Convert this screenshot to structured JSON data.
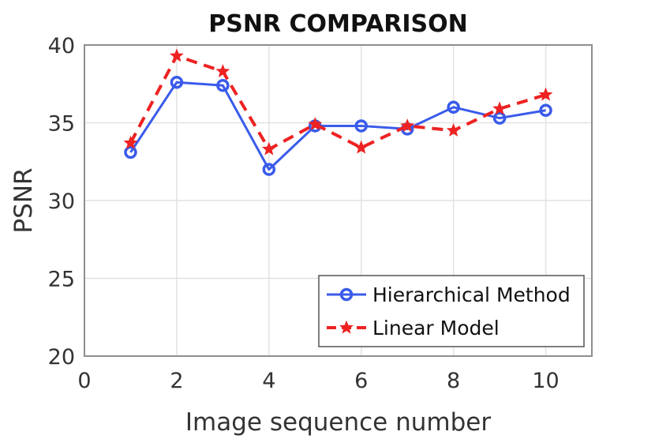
{
  "chart_data": {
    "type": "line",
    "title": "PSNR COMPARISON",
    "xlabel": "Image sequence number",
    "ylabel": "PSNR",
    "xlim": [
      0,
      11
    ],
    "ylim": [
      20,
      40
    ],
    "xticks": [
      0,
      2,
      4,
      6,
      8,
      10
    ],
    "yticks": [
      20,
      25,
      30,
      35,
      40
    ],
    "grid": true,
    "legend_position": "bottom-right",
    "x": [
      1,
      2,
      3,
      4,
      5,
      6,
      7,
      8,
      9,
      10
    ],
    "series": [
      {
        "name": "Hierarchical Method",
        "values": [
          33.1,
          37.6,
          37.4,
          32.0,
          34.8,
          34.8,
          34.6,
          36.0,
          35.3,
          35.8
        ],
        "color": "#3a5bea",
        "line_style": "solid",
        "marker": "circle"
      },
      {
        "name": "Linear Model",
        "values": [
          33.7,
          39.3,
          38.3,
          33.3,
          34.9,
          33.4,
          34.8,
          34.5,
          35.9,
          36.8
        ],
        "color": "#ee2222",
        "line_style": "dashed",
        "marker": "star"
      }
    ]
  }
}
